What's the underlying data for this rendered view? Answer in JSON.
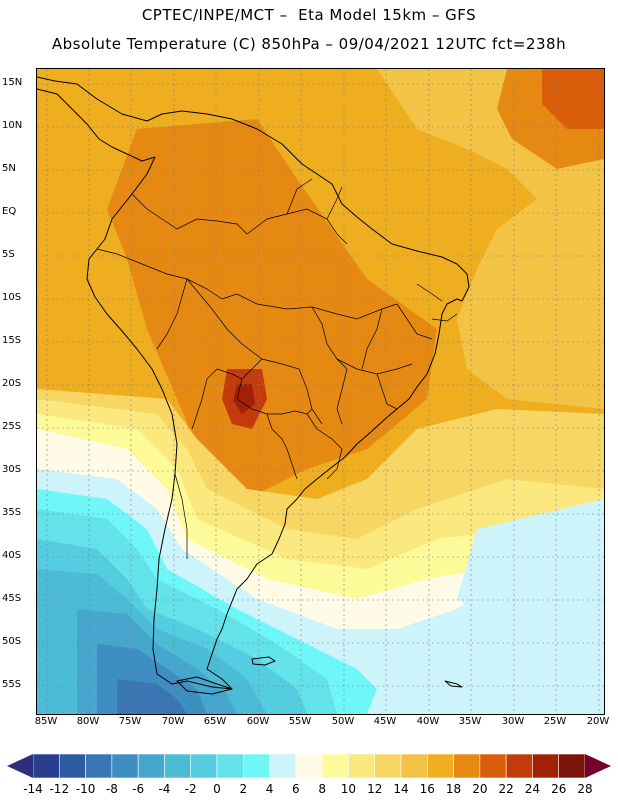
{
  "header": {
    "line1": "CPTEC/INPE/MCT –  Eta Model 15km – GFS",
    "line2": "Absolute Temperature (C) 850hPa – 09/04/2021 12UTC fct=238h"
  },
  "axes": {
    "lat_labels": [
      "15N",
      "10N",
      "5N",
      "EQ",
      "5S",
      "10S",
      "15S",
      "20S",
      "25S",
      "30S",
      "35S",
      "40S",
      "45S",
      "50S",
      "55S"
    ],
    "lon_labels": [
      "85W",
      "80W",
      "75W",
      "70W",
      "65W",
      "60W",
      "55W",
      "50W",
      "45W",
      "40W",
      "35W",
      "30W",
      "25W",
      "20W"
    ]
  },
  "colorbar": {
    "labels": [
      "-14",
      "-12",
      "-10",
      "-8",
      "-6",
      "-4",
      "-2",
      "0",
      "2",
      "4",
      "6",
      "8",
      "10",
      "12",
      "14",
      "16",
      "18",
      "20",
      "22",
      "24",
      "26",
      "28"
    ],
    "colors": [
      "#2a3e8f",
      "#2e5aa2",
      "#3a76b4",
      "#3f8ec1",
      "#47a6cd",
      "#4cbbd6",
      "#54cde0",
      "#64e2ea",
      "#6ff7f7",
      "#cdf3fb",
      "#fffbe6",
      "#fdfb99",
      "#fbe87e",
      "#f8d664",
      "#f3c345",
      "#eeae20",
      "#e58913",
      "#da5e0a",
      "#c43b0b",
      "#a22106",
      "#7a1408"
    ],
    "under_color": "#2c2f7c",
    "over_color": "#74002b"
  }
}
